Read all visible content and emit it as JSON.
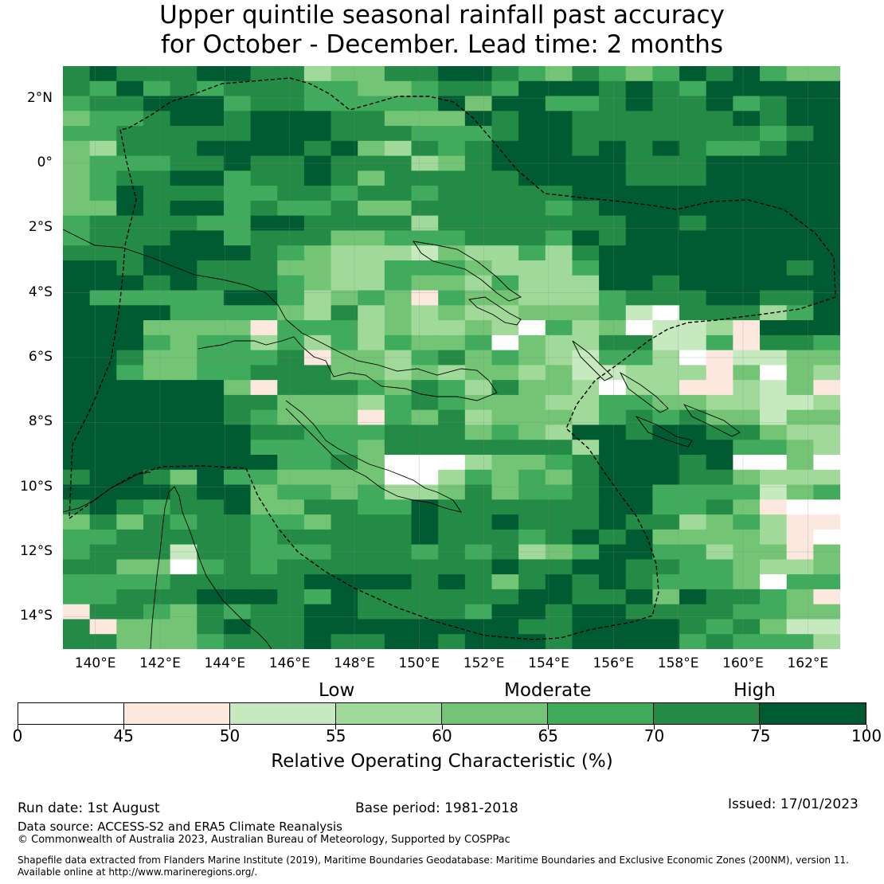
{
  "title": {
    "line1": "Upper quintile seasonal rainfall past accuracy",
    "line2": "for October - December. Lead time: 2 months"
  },
  "map": {
    "lat_labels": [
      "2°N",
      "0°",
      "2°S",
      "4°S",
      "6°S",
      "8°S",
      "10°S",
      "12°S",
      "14°S"
    ],
    "lon_labels": [
      "140°E",
      "142°E",
      "144°E",
      "146°E",
      "148°E",
      "150°E",
      "152°E",
      "154°E",
      "156°E",
      "158°E",
      "160°E",
      "162°E"
    ],
    "lon_range": [
      139,
      163
    ],
    "lat_range": [
      -15,
      3
    ],
    "gridlines": true,
    "boundary_line": "dashed"
  },
  "legend": {
    "categories": [
      "Low",
      "Moderate",
      "High"
    ],
    "bins": [
      {
        "from": 0,
        "to": 45,
        "color": "#ffffff"
      },
      {
        "from": 45,
        "to": 50,
        "color": "#fde8e0"
      },
      {
        "from": 50,
        "to": 55,
        "color": "#c7e9c0"
      },
      {
        "from": 55,
        "to": 60,
        "color": "#a1d99b"
      },
      {
        "from": 60,
        "to": 65,
        "color": "#74c476"
      },
      {
        "from": 65,
        "to": 70,
        "color": "#41ab5d"
      },
      {
        "from": 70,
        "to": 75,
        "color": "#238b45"
      },
      {
        "from": 75,
        "to": 100,
        "color": "#005a32"
      }
    ],
    "ticks": [
      "0",
      "45",
      "50",
      "55",
      "60",
      "65",
      "70",
      "75",
      "100"
    ],
    "label": "Relative Operating Characteristic (%)"
  },
  "footer": {
    "run_date": "Run date: 1st August",
    "base_period": "Base period: 1981-2018",
    "issued": "Issued: 17/01/2023",
    "data_source": "Data source: ACCESS-S2 and ERA5 Climate Reanalysis",
    "copyright": "© Commonwealth of Australia 2023, Australian Bureau of Meteorology, Supported by COSPPac",
    "shapefile_line1": "Shapefile data extracted from Flanders Marine Institute (2019), Maritime Boundaries Geodatabase: Maritime Boundaries and Exclusive Economic Zones (200NM), version 11.",
    "shapefile_line2": "Available online at http://www.marineregions.org/."
  },
  "grid_cells": [
    "67666776634466776546545767544",
    "65756566655445665777676577777",
    "56677756655555747755676675677",
    "45567767776644476776666667677",
    "55666667776665556776666666567",
    "43666777767436567776767655677",
    "45556676676663467777766677777",
    "45667756676466666777766677777",
    "45766655665665666667777777777",
    "44767756556446666656777777777",
    "56666557766663666666677677777",
    "56667756664455566657677777777",
    "66677776543332433536777777777",
    "77677666443355543335777777767",
    "77767666543354435333776777777",
    "75555577534541544333566677667",
    "77775555436343433444520666357",
    "77744441555343343053402231777",
    "77754553535354450433662251665",
    "77644555614435645432553012244",
    "77544556664434344342233314043",
    "77777741666546536443033113241",
    "77777766444356544433554433223",
    "77777765444154634443565644244",
    "77777776655566645437767766433",
    "77777775555466666663777775543",
    "77777777556400034456777670040",
    "67764755444400354546777664333",
    "77776774554533464556775555245",
    "67656674466557666666775564100",
    "46465665546667667666766345311",
    "55666665666667666567674444310",
    "56662665556665656345775534414",
    "66440565666666667667766554334",
    "55556666677776764676765554055",
    "55666777657666666776674766541",
    "16654656677666657767766665544",
    "61444676677777777667777656422",
    "66444566676677677767777565553"
  ]
}
